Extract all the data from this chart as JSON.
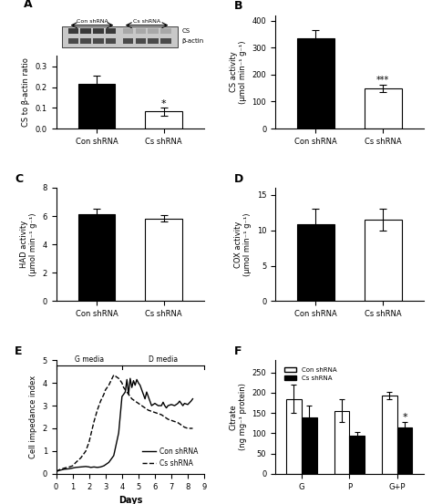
{
  "panel_A": {
    "categories": [
      "Con shRNA",
      "Cs shRNA"
    ],
    "values": [
      0.215,
      0.082
    ],
    "errors": [
      0.04,
      0.018
    ],
    "colors": [
      "black",
      "white"
    ],
    "ylabel": "CS to β-actin ratio",
    "ylim": [
      0,
      0.35
    ],
    "yticks": [
      0.0,
      0.1,
      0.2,
      0.3
    ],
    "sig_labels": [
      "",
      "*"
    ]
  },
  "panel_B": {
    "categories": [
      "Con shRNA",
      "Cs shRNA"
    ],
    "values": [
      335,
      148
    ],
    "errors": [
      28,
      14
    ],
    "colors": [
      "black",
      "white"
    ],
    "ylabel": "CS activity\n(μmol min⁻¹ g⁻¹)",
    "ylim": [
      0,
      420
    ],
    "yticks": [
      0,
      100,
      200,
      300,
      400
    ],
    "sig_labels": [
      "",
      "***"
    ]
  },
  "panel_C": {
    "categories": [
      "Con shRNA",
      "Cs shRNA"
    ],
    "values": [
      6.15,
      5.82
    ],
    "errors": [
      0.38,
      0.22
    ],
    "colors": [
      "black",
      "white"
    ],
    "ylabel": "HAD activity\n(μmol min⁻¹ g⁻¹)",
    "ylim": [
      0,
      8
    ],
    "yticks": [
      0,
      2,
      4,
      6,
      8
    ],
    "sig_labels": [
      "",
      ""
    ]
  },
  "panel_D": {
    "categories": [
      "Con shRNA",
      "Cs shRNA"
    ],
    "values": [
      10.9,
      11.5
    ],
    "errors": [
      2.2,
      1.6
    ],
    "colors": [
      "black",
      "white"
    ],
    "ylabel": "COX activity\n(μmol min⁻¹ g⁻¹)",
    "ylim": [
      0,
      16
    ],
    "yticks": [
      0,
      5,
      10,
      15
    ],
    "sig_labels": [
      "",
      ""
    ]
  },
  "panel_E": {
    "days_con": [
      0,
      0.2,
      0.5,
      0.8,
      1.0,
      1.2,
      1.5,
      1.8,
      2.0,
      2.1,
      2.3,
      2.5,
      2.7,
      2.9,
      3.0,
      3.2,
      3.5,
      3.8,
      4.0,
      4.1,
      4.2,
      4.3,
      4.4,
      4.5,
      4.6,
      4.7,
      4.8,
      4.9,
      5.0,
      5.1,
      5.2,
      5.3,
      5.4,
      5.5,
      5.6,
      5.7,
      5.8,
      6.0,
      6.2,
      6.4,
      6.5,
      6.6,
      6.7,
      6.8,
      7.0,
      7.2,
      7.4,
      7.5,
      7.6,
      7.7,
      7.8,
      8.0,
      8.2,
      8.3
    ],
    "ci_con": [
      0.1,
      0.15,
      0.2,
      0.22,
      0.25,
      0.28,
      0.3,
      0.32,
      0.3,
      0.28,
      0.3,
      0.28,
      0.3,
      0.35,
      0.4,
      0.5,
      0.8,
      1.8,
      3.4,
      3.5,
      3.6,
      4.15,
      3.5,
      4.2,
      3.8,
      4.1,
      3.9,
      4.15,
      4.0,
      3.9,
      3.7,
      3.5,
      3.3,
      3.6,
      3.4,
      3.2,
      3.0,
      3.1,
      3.0,
      3.0,
      3.15,
      3.0,
      2.9,
      3.0,
      3.05,
      3.0,
      3.1,
      3.2,
      3.1,
      3.0,
      3.1,
      3.05,
      3.2,
      3.3
    ],
    "days_cs": [
      0,
      0.2,
      0.5,
      0.8,
      1.0,
      1.2,
      1.5,
      1.7,
      1.8,
      1.9,
      2.0,
      2.1,
      2.2,
      2.3,
      2.5,
      2.7,
      2.9,
      3.0,
      3.2,
      3.5,
      3.8,
      4.0,
      4.1,
      4.2,
      4.3,
      4.4,
      4.5,
      4.6,
      4.7,
      4.8,
      4.9,
      5.0,
      5.2,
      5.4,
      5.6,
      5.8,
      6.0,
      6.2,
      6.4,
      6.5,
      6.6,
      6.7,
      6.8,
      7.0,
      7.2,
      7.4,
      7.5,
      7.6,
      7.7,
      7.8,
      8.0,
      8.2,
      8.3
    ],
    "ci_cs": [
      0.1,
      0.18,
      0.25,
      0.3,
      0.35,
      0.5,
      0.7,
      0.9,
      1.0,
      1.2,
      1.4,
      1.7,
      2.0,
      2.3,
      2.8,
      3.2,
      3.5,
      3.7,
      3.9,
      4.35,
      4.2,
      4.0,
      3.8,
      3.7,
      3.6,
      3.5,
      3.4,
      3.3,
      3.25,
      3.2,
      3.15,
      3.1,
      3.0,
      2.9,
      2.8,
      2.75,
      2.7,
      2.65,
      2.6,
      2.55,
      2.5,
      2.45,
      2.4,
      2.35,
      2.3,
      2.25,
      2.2,
      2.15,
      2.1,
      2.05,
      2.0,
      2.0,
      2.0
    ],
    "ylabel": "Cell impedance index",
    "xlabel": "Days",
    "ylim": [
      0,
      5
    ],
    "yticks": [
      0,
      1,
      2,
      3,
      4,
      5
    ],
    "xlim": [
      0,
      9
    ],
    "xticks": [
      0,
      1,
      2,
      3,
      4,
      5,
      6,
      7,
      8,
      9
    ],
    "g_media_end": 4.0
  },
  "panel_F": {
    "groups": [
      "G",
      "P",
      "G+P"
    ],
    "con_values": [
      185,
      155,
      193
    ],
    "cs_values": [
      140,
      93,
      115
    ],
    "con_errors": [
      35,
      28,
      10
    ],
    "cs_errors": [
      28,
      10,
      12
    ],
    "ylabel": "Citrate\n(ng mg⁻¹ protein)",
    "ylim": [
      0,
      280
    ],
    "yticks": [
      0,
      50,
      100,
      150,
      200,
      250
    ],
    "sig_labels": [
      "",
      "",
      "*"
    ],
    "legend_labels": [
      "Con shRNA",
      "Cs shRNA"
    ]
  }
}
